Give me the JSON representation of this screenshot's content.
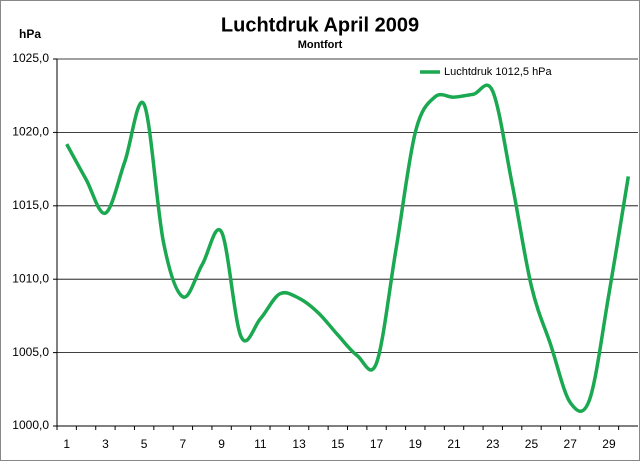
{
  "chart_data": {
    "type": "line",
    "title": "Luchtdruk April 2009",
    "subtitle": "Montfort",
    "y_label": "hPa",
    "categories": [
      1,
      null,
      3,
      null,
      5,
      null,
      7,
      null,
      9,
      null,
      11,
      null,
      13,
      null,
      15,
      null,
      17,
      null,
      19,
      null,
      21,
      null,
      23,
      null,
      25,
      null,
      27,
      null,
      29,
      null
    ],
    "series": [
      {
        "name": "Luchtdruk 1012,5  hPa",
        "color": "#1aa850",
        "values": [
          1019.2,
          1016.8,
          1014.5,
          1018.0,
          1021.9,
          1012.5,
          1008.8,
          1011.0,
          1013.2,
          1006.1,
          1007.3,
          1009.0,
          1008.7,
          1007.7,
          1006.2,
          1004.8,
          1004.3,
          1012.0,
          1020.0,
          1022.4,
          1022.4,
          1022.6,
          1022.8,
          1016.5,
          1009.5,
          1005.5,
          1001.6,
          1001.8,
          1009.0,
          1017.0
        ]
      }
    ],
    "ylim": [
      1000,
      1025
    ],
    "yticks": [
      {
        "value": 1000,
        "label": "1000,0"
      },
      {
        "value": 1005,
        "label": "1005,0"
      },
      {
        "value": 1010,
        "label": "1010,0"
      },
      {
        "value": 1015,
        "label": "1015,0"
      },
      {
        "value": 1020,
        "label": "1020,0"
      },
      {
        "value": 1025,
        "label": "1025,0"
      }
    ],
    "grid": true,
    "legend": "top-right"
  }
}
